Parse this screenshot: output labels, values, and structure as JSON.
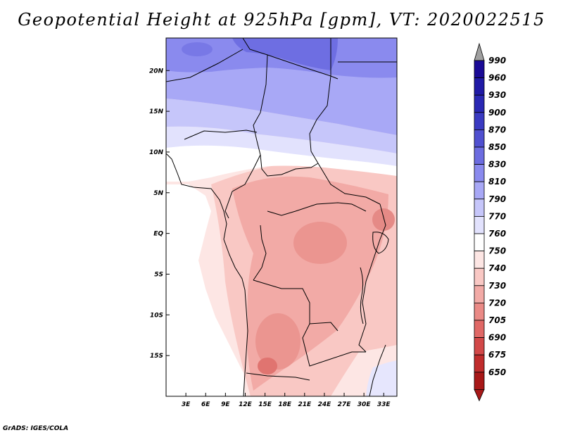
{
  "title": "Geopotential Height at 925hPa [gpm], VT: 2020022515",
  "credit": "GrADS: IGES/COLA",
  "map": {
    "lon_range": [
      0,
      35
    ],
    "lat_range": [
      -20,
      24
    ],
    "lon_ticks": [
      {
        "lon": 3,
        "label": "3E"
      },
      {
        "lon": 6,
        "label": "6E"
      },
      {
        "lon": 9,
        "label": "9E"
      },
      {
        "lon": 12,
        "label": "12E"
      },
      {
        "lon": 15,
        "label": "15E"
      },
      {
        "lon": 18,
        "label": "18E"
      },
      {
        "lon": 21,
        "label": "21E"
      },
      {
        "lon": 24,
        "label": "24E"
      },
      {
        "lon": 27,
        "label": "27E"
      },
      {
        "lon": 30,
        "label": "30E"
      },
      {
        "lon": 33,
        "label": "33E"
      }
    ],
    "lat_ticks": [
      {
        "lat": 20,
        "label": "20N"
      },
      {
        "lat": 15,
        "label": "15N"
      },
      {
        "lat": 10,
        "label": "10N"
      },
      {
        "lat": 5,
        "label": "5N"
      },
      {
        "lat": 0,
        "label": "EQ"
      },
      {
        "lat": -5,
        "label": "5S"
      },
      {
        "lat": -10,
        "label": "10S"
      },
      {
        "lat": -15,
        "label": "15S"
      }
    ]
  },
  "colorbar": {
    "levels": [
      {
        "label": "990",
        "color": "#1a0a96"
      },
      {
        "label": "960",
        "color": "#201aa6"
      },
      {
        "label": "930",
        "color": "#2a28b4"
      },
      {
        "label": "900",
        "color": "#3a3ac2"
      },
      {
        "label": "870",
        "color": "#5050d0"
      },
      {
        "label": "850",
        "color": "#6c6ce0"
      },
      {
        "label": "830",
        "color": "#8a8aee"
      },
      {
        "label": "810",
        "color": "#a8a8f6"
      },
      {
        "label": "790",
        "color": "#c6c6fa"
      },
      {
        "label": "770",
        "color": "#e2e2fd"
      },
      {
        "label": "760",
        "color": "#ffffff"
      },
      {
        "label": "750",
        "color": "#fde6e4"
      },
      {
        "label": "740",
        "color": "#f9c8c4"
      },
      {
        "label": "730",
        "color": "#f2aaa6"
      },
      {
        "label": "720",
        "color": "#ea8a86"
      },
      {
        "label": "705",
        "color": "#e06866"
      },
      {
        "label": "690",
        "color": "#d24848"
      },
      {
        "label": "675",
        "color": "#c02c2c"
      },
      {
        "label": "650",
        "color": "#a81818"
      }
    ],
    "over_color": "#a0a0a0",
    "under_color": "#a81818"
  }
}
